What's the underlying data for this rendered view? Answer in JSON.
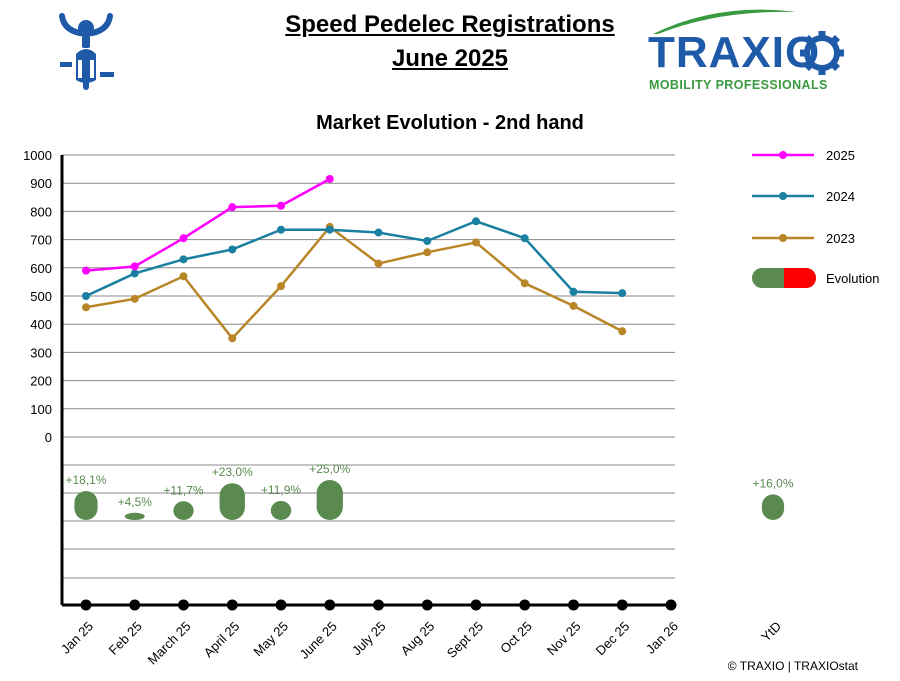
{
  "header": {
    "title_line1": "Speed Pedelec Registrations",
    "title_line2": "June 2025",
    "logo_name": "TRAXIO",
    "logo_tagline": "MOBILITY PROFESSIONALS",
    "copyright": "© TRAXIO | TRAXIOstat"
  },
  "icons": {
    "left": "scooter-rider-icon",
    "logo_gear": "gear-icon"
  },
  "colors": {
    "s2025": "#ff00ff",
    "s2024": "#1a7fa0",
    "s2023": "#b98627",
    "evolution_green": "#5a8a50",
    "evolution_red": "#ff0000",
    "logo_blue": "#1f5aa8",
    "logo_green": "#3a9a40"
  },
  "chart_data": {
    "type": "line",
    "title": "Market Evolution - 2nd hand",
    "categories": [
      "Jan 25",
      "Feb 25",
      "March 25",
      "April 25",
      "May 25",
      "June 25",
      "July 25",
      "Aug 25",
      "Sept 25",
      "Oct 25",
      "Nov 25",
      "Dec 25",
      "Jan 26"
    ],
    "y_ticks": [
      "1000",
      "900",
      "800",
      "700",
      "600",
      "500",
      "400",
      "300",
      "200",
      "100",
      "0"
    ],
    "ylim": [
      0,
      1000
    ],
    "grid": true,
    "legend_position": "right",
    "series": [
      {
        "name": "2025",
        "values": [
          590,
          605,
          705,
          815,
          820,
          915,
          null,
          null,
          null,
          null,
          null,
          null,
          null
        ]
      },
      {
        "name": "2024",
        "values": [
          500,
          580,
          630,
          665,
          735,
          735,
          725,
          695,
          765,
          705,
          515,
          510,
          null
        ]
      },
      {
        "name": "2023",
        "values": [
          460,
          490,
          570,
          350,
          535,
          745,
          615,
          655,
          690,
          545,
          465,
          375,
          null
        ]
      }
    ],
    "legend_evolution": "Evolution",
    "evolution": {
      "values": [
        18.1,
        4.5,
        11.7,
        23.0,
        11.9,
        25.0
      ],
      "labels": [
        "+18,1%",
        "+4,5%",
        "+11,7%",
        "+23,0%",
        "+11,9%",
        "+25,0%"
      ]
    },
    "ytd": {
      "category": "YtD",
      "value": 16.0,
      "label": "+16,0%"
    }
  }
}
